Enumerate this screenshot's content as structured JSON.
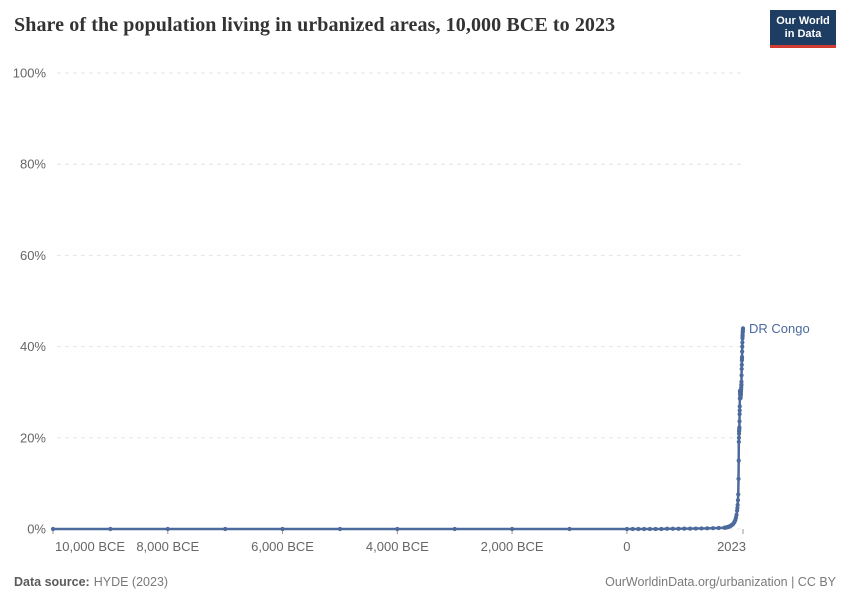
{
  "header": {
    "title": "Share of the population living in urbanized areas, 10,000 BCE to 2023"
  },
  "logo": {
    "line1": "Our World",
    "line2": "in Data",
    "bg_color": "#1d3d63",
    "accent_color": "#d13d33"
  },
  "footer": {
    "source_label": "Data source:",
    "source_value": "HYDE (2023)",
    "credit": "OurWorldinData.org/urbanization | CC BY"
  },
  "chart_data": {
    "type": "line",
    "title": "Share of the population living in urbanized areas, 10,000 BCE to 2023",
    "xlabel": "",
    "ylabel": "",
    "xlim": [
      -10000,
      2023
    ],
    "ylim": [
      0,
      100
    ],
    "grid": "horizontal-dashed",
    "legend_position": "end-of-line-label",
    "colors": {
      "line": "#4c6a9c",
      "grid": "#e6e6e6",
      "tick": "#999999",
      "tick_text": "#666666"
    },
    "x_ticks": [
      {
        "label": "10,000 BCE",
        "year": -10000
      },
      {
        "label": "8,000 BCE",
        "year": -8000
      },
      {
        "label": "6,000 BCE",
        "year": -6000
      },
      {
        "label": "4,000 BCE",
        "year": -4000
      },
      {
        "label": "2,000 BCE",
        "year": -2000
      },
      {
        "label": "0",
        "year": 0
      },
      {
        "label": "2023",
        "year": 2023
      }
    ],
    "y_ticks": [
      {
        "label": "0%",
        "value": 0
      },
      {
        "label": "20%",
        "value": 20
      },
      {
        "label": "40%",
        "value": 40
      },
      {
        "label": "60%",
        "value": 60
      },
      {
        "label": "80%",
        "value": 80
      },
      {
        "label": "100%",
        "value": 100
      }
    ],
    "series": [
      {
        "name": "DR Congo",
        "color": "#4c6a9c",
        "points": [
          [
            -10000,
            0
          ],
          [
            -9000,
            0
          ],
          [
            -8000,
            0
          ],
          [
            -7000,
            0
          ],
          [
            -6000,
            0
          ],
          [
            -5000,
            0
          ],
          [
            -4000,
            0
          ],
          [
            -3000,
            0
          ],
          [
            -2000,
            0
          ],
          [
            -1000,
            0
          ],
          [
            0,
            0
          ],
          [
            100,
            0
          ],
          [
            200,
            0
          ],
          [
            300,
            0
          ],
          [
            400,
            0
          ],
          [
            500,
            0
          ],
          [
            600,
            0
          ],
          [
            700,
            0.05
          ],
          [
            800,
            0.05
          ],
          [
            900,
            0.05
          ],
          [
            1000,
            0.08
          ],
          [
            1100,
            0.08
          ],
          [
            1200,
            0.1
          ],
          [
            1300,
            0.12
          ],
          [
            1400,
            0.15
          ],
          [
            1500,
            0.18
          ],
          [
            1600,
            0.22
          ],
          [
            1700,
            0.28
          ],
          [
            1710,
            0.3
          ],
          [
            1720,
            0.32
          ],
          [
            1730,
            0.34
          ],
          [
            1740,
            0.36
          ],
          [
            1750,
            0.4
          ],
          [
            1760,
            0.44
          ],
          [
            1770,
            0.48
          ],
          [
            1780,
            0.53
          ],
          [
            1790,
            0.58
          ],
          [
            1800,
            0.64
          ],
          [
            1810,
            0.71
          ],
          [
            1820,
            0.79
          ],
          [
            1830,
            0.88
          ],
          [
            1840,
            0.98
          ],
          [
            1850,
            1.1
          ],
          [
            1860,
            1.25
          ],
          [
            1870,
            1.45
          ],
          [
            1880,
            1.7
          ],
          [
            1890,
            2.0
          ],
          [
            1900,
            2.5
          ],
          [
            1910,
            3.1
          ],
          [
            1920,
            4.0
          ],
          [
            1925,
            4.6
          ],
          [
            1930,
            5.3
          ],
          [
            1935,
            6.3
          ],
          [
            1940,
            7.6
          ],
          [
            1945,
            11.0
          ],
          [
            1948,
            15.0
          ],
          [
            1950,
            19.1
          ],
          [
            1952,
            20.0
          ],
          [
            1954,
            20.9
          ],
          [
            1955,
            21.4
          ],
          [
            1956,
            21.6
          ],
          [
            1958,
            22.0
          ],
          [
            1960,
            22.3
          ],
          [
            1962,
            23.6
          ],
          [
            1964,
            25.2
          ],
          [
            1965,
            26.0
          ],
          [
            1966,
            26.9
          ],
          [
            1968,
            28.6
          ],
          [
            1970,
            30.3
          ],
          [
            1972,
            30.0
          ],
          [
            1974,
            29.6
          ],
          [
            1975,
            29.5
          ],
          [
            1976,
            29.3
          ],
          [
            1978,
            29.0
          ],
          [
            1980,
            28.7
          ],
          [
            1982,
            29.0
          ],
          [
            1984,
            29.4
          ],
          [
            1985,
            29.6
          ],
          [
            1986,
            29.8
          ],
          [
            1988,
            30.2
          ],
          [
            1990,
            30.6
          ],
          [
            1992,
            31.0
          ],
          [
            1994,
            31.5
          ],
          [
            1995,
            31.7
          ],
          [
            1996,
            32.3
          ],
          [
            1998,
            33.7
          ],
          [
            2000,
            35.1
          ],
          [
            2002,
            36.0
          ],
          [
            2004,
            37.0
          ],
          [
            2005,
            37.4
          ],
          [
            2006,
            37.7
          ],
          [
            2008,
            38.9
          ],
          [
            2010,
            40.0
          ],
          [
            2012,
            40.9
          ],
          [
            2014,
            41.8
          ],
          [
            2015,
            42.3
          ],
          [
            2016,
            42.5
          ],
          [
            2018,
            43.0
          ],
          [
            2020,
            43.4
          ],
          [
            2022,
            43.8
          ],
          [
            2023,
            44.0
          ]
        ]
      }
    ]
  }
}
